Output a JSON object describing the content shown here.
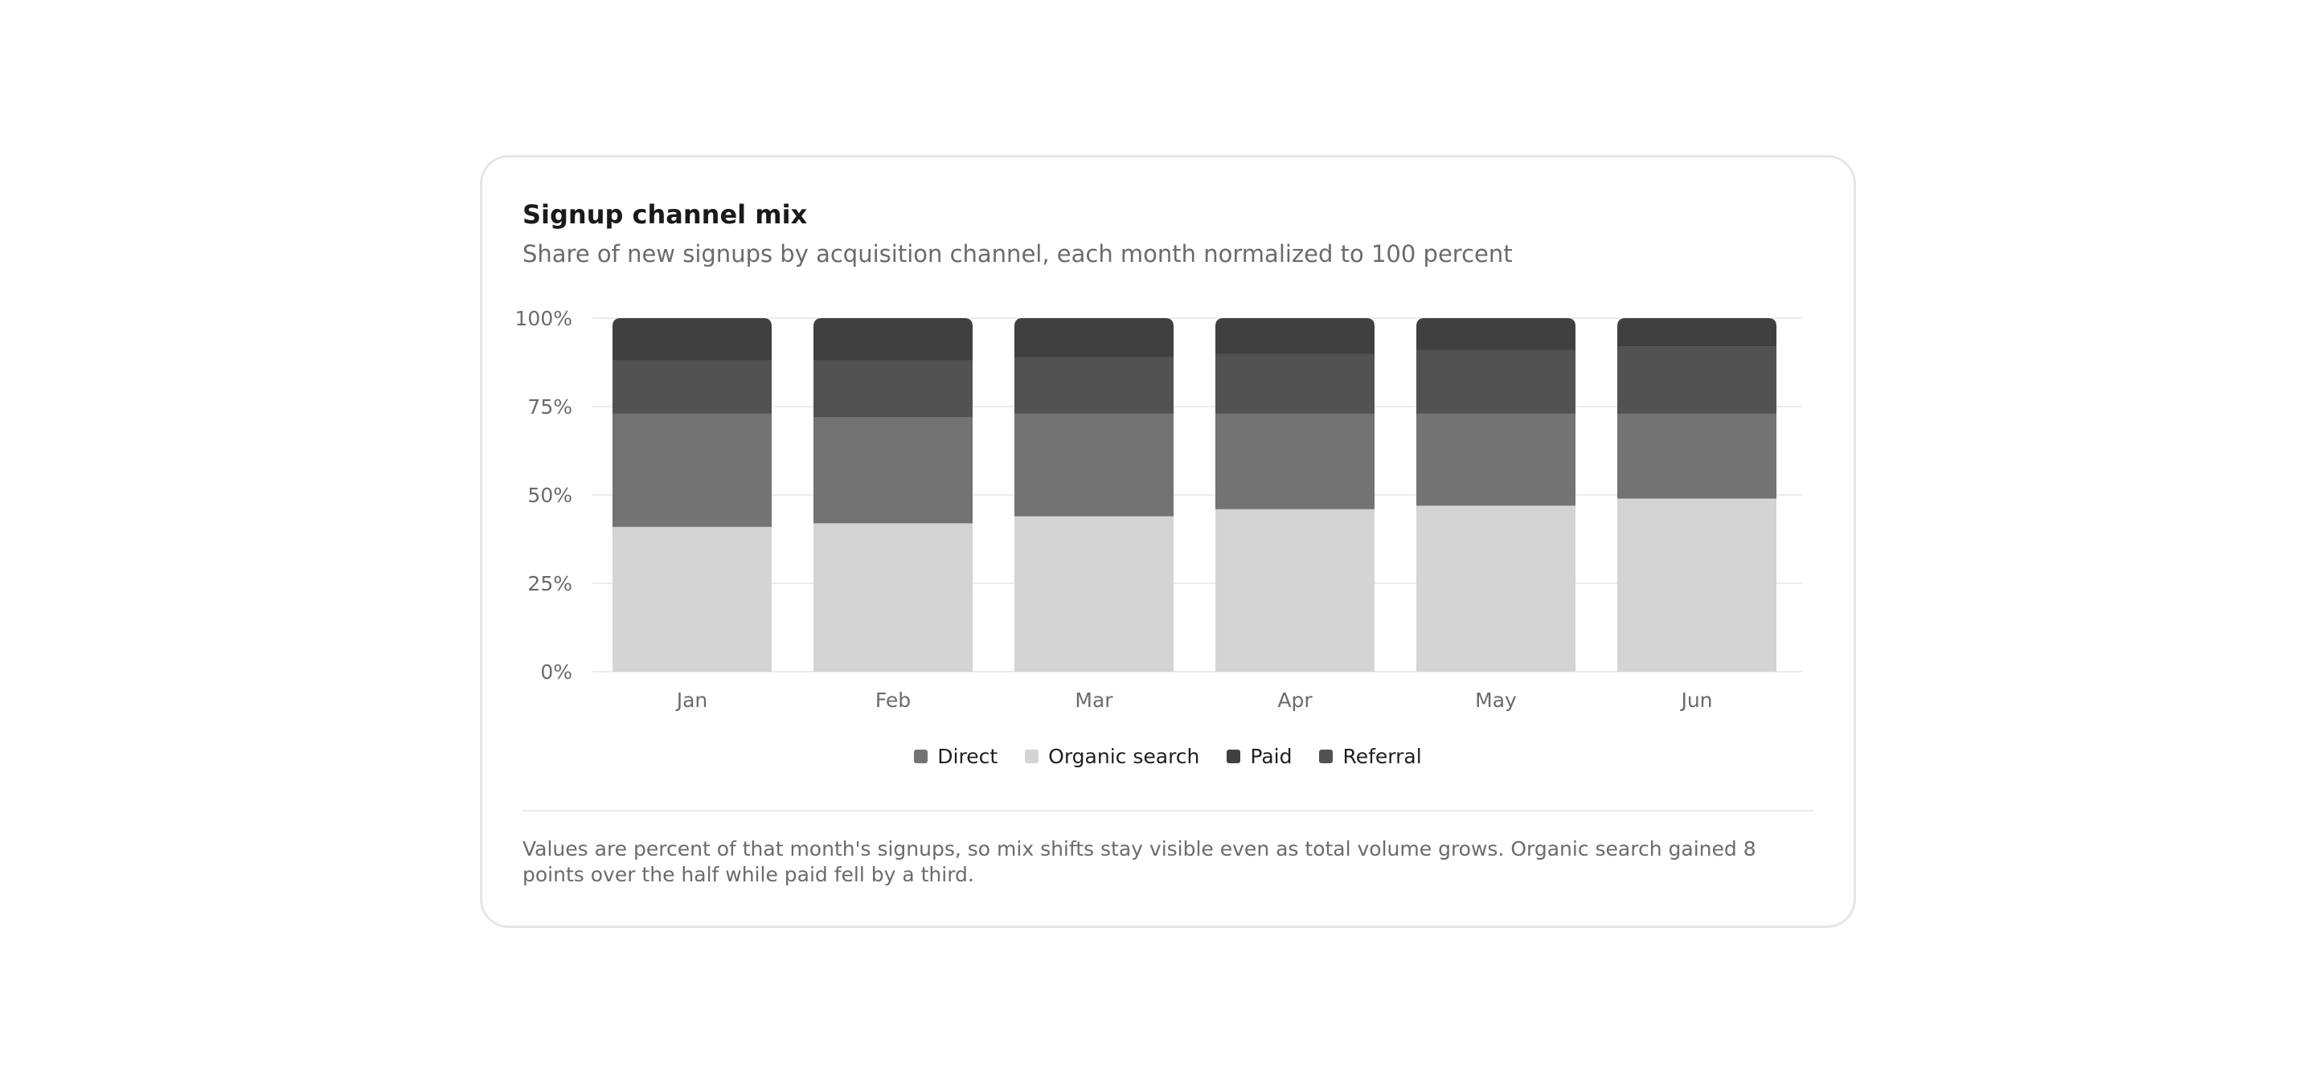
{
  "card": {
    "title": "Signup channel mix",
    "subtitle": "Share of new signups by acquisition channel, each month normalized to 100 percent",
    "note": "Values are percent of that month's signups, so mix shifts stay visible even as total volume grows. Organic search gained 8 points over the half while paid fell by a third."
  },
  "chart_data": {
    "type": "bar",
    "stacked": true,
    "categories": [
      "Jan",
      "Feb",
      "Mar",
      "Apr",
      "May",
      "Jun"
    ],
    "ylim": [
      0,
      100
    ],
    "yticks": [
      0,
      25,
      50,
      75,
      100
    ],
    "ytick_labels": [
      "0%",
      "25%",
      "50%",
      "75%",
      "100%"
    ],
    "grid": true,
    "legend_position": "bottom",
    "series": [
      {
        "name": "Organic search",
        "color": "#d4d4d4",
        "values": [
          41,
          42,
          44,
          46,
          47,
          49
        ]
      },
      {
        "name": "Direct",
        "color": "#737373",
        "values": [
          32,
          30,
          29,
          27,
          26,
          24
        ]
      },
      {
        "name": "Referral",
        "color": "#525252",
        "values": [
          15,
          16,
          16,
          17,
          18,
          19
        ]
      },
      {
        "name": "Paid",
        "color": "#404040",
        "values": [
          12,
          12,
          11,
          10,
          9,
          8
        ]
      }
    ],
    "legend": [
      {
        "name": "Direct",
        "color": "#737373"
      },
      {
        "name": "Organic search",
        "color": "#d4d4d4"
      },
      {
        "name": "Paid",
        "color": "#404040"
      },
      {
        "name": "Referral",
        "color": "#525252"
      }
    ]
  }
}
